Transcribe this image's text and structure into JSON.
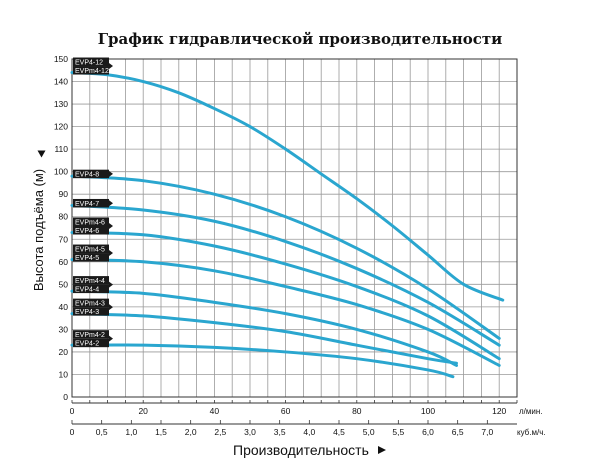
{
  "chart_data": {
    "type": "line",
    "title": "График гидравлической производительности",
    "ylabel": "Высота подъёма (м)",
    "xlabel": "Производительность",
    "x_unit_primary": "л/мин.",
    "x_unit_secondary": "куб.м/ч.",
    "xlim": [
      0,
      125
    ],
    "ylim": [
      0,
      150
    ],
    "y_ticks": [
      0,
      10,
      20,
      30,
      40,
      50,
      60,
      70,
      80,
      90,
      100,
      110,
      120,
      130,
      140,
      150
    ],
    "x_ticks_primary": [
      0,
      20,
      40,
      60,
      80,
      100,
      120
    ],
    "x_ticks_secondary": [
      "0",
      "0,5",
      "1,0",
      "1,5",
      "2,0",
      "2,5",
      "3,0",
      "3,5",
      "4,0",
      "4,5",
      "5,0",
      "5,5",
      "6,0",
      "6,5",
      "7,0"
    ],
    "grid": true,
    "line_color": "#2aa6cf",
    "label_bg": "#1a1a1a",
    "series": [
      {
        "labels": [
          "EVP4-12",
          "EVPm4-12"
        ],
        "x": [
          0,
          10,
          20,
          30,
          40,
          50,
          60,
          70,
          80,
          90,
          100,
          110,
          121
        ],
        "y": [
          144,
          143,
          140,
          135,
          128,
          120,
          110,
          99,
          88,
          76,
          63,
          50,
          43
        ]
      },
      {
        "labels": [
          "EVP4-8"
        ],
        "x": [
          0,
          20,
          40,
          60,
          80,
          100,
          120
        ],
        "y": [
          98,
          96,
          90,
          80,
          66,
          48,
          26
        ]
      },
      {
        "labels": [
          "EVP4-7"
        ],
        "x": [
          0,
          20,
          40,
          60,
          80,
          100,
          120
        ],
        "y": [
          85,
          83,
          78,
          69,
          57,
          42,
          23
        ]
      },
      {
        "labels": [
          "EVPm4-6",
          "EVP4-6"
        ],
        "x": [
          0,
          20,
          40,
          60,
          80,
          100,
          120
        ],
        "y": [
          73,
          72,
          67,
          59,
          49,
          36,
          17
        ]
      },
      {
        "labels": [
          "EVPm4-5",
          "EVP4-5"
        ],
        "x": [
          0,
          20,
          40,
          60,
          80,
          100,
          120
        ],
        "y": [
          61,
          60,
          56,
          49,
          41,
          30,
          14
        ]
      },
      {
        "labels": [
          "EVPm4-4",
          "EVP4-4"
        ],
        "x": [
          0,
          20,
          40,
          60,
          80,
          100,
          108
        ],
        "y": [
          47,
          46,
          42,
          37,
          30,
          20,
          14
        ]
      },
      {
        "labels": [
          "EVPm4-3",
          "EVP4-3"
        ],
        "x": [
          0,
          20,
          40,
          60,
          80,
          100,
          108
        ],
        "y": [
          37,
          36,
          33,
          29,
          23,
          17,
          15
        ]
      },
      {
        "labels": [
          "EVPm4-2",
          "EVP4-2"
        ],
        "x": [
          0,
          20,
          40,
          60,
          80,
          100,
          107
        ],
        "y": [
          23,
          23,
          22,
          20,
          17,
          12,
          9
        ]
      }
    ]
  }
}
